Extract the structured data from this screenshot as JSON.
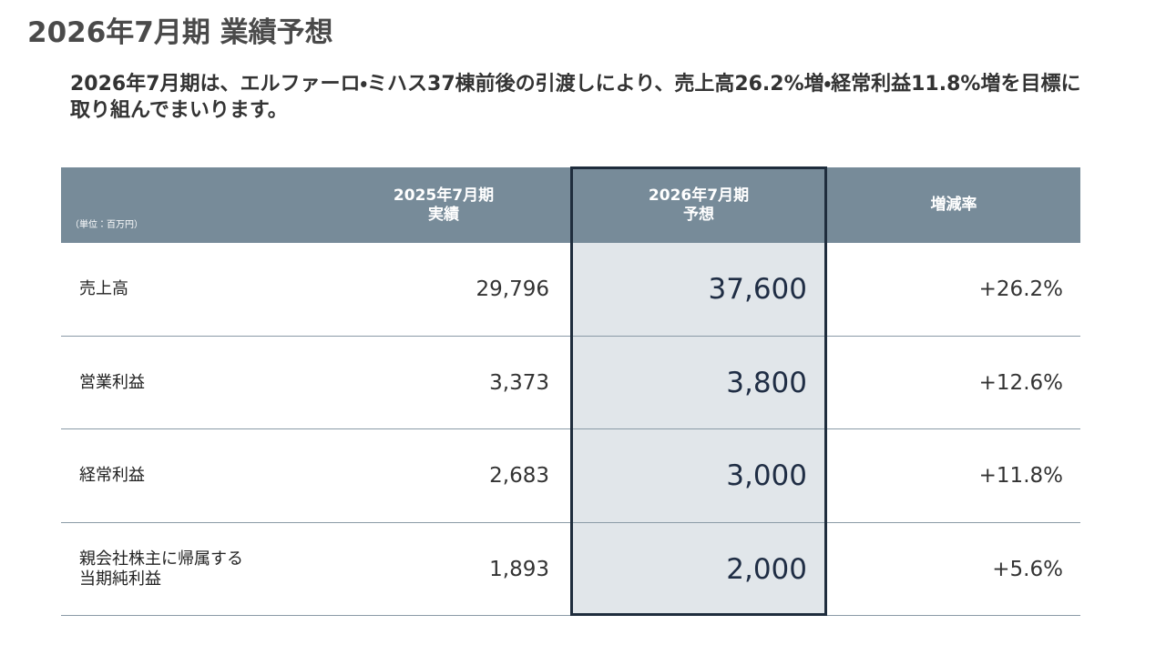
{
  "title": "2026年7月期 業績予想",
  "description": "2026年7月期は、エルファーロ・ミハス37棟前後の引渡しにより、売上高26.2%増・経常利益11.8%増を目標に取り組んでまいります。",
  "table": {
    "unit_note": "（単位：百万円）",
    "headers": [
      [
        "2025年7月期",
        "実績"
      ],
      [
        "2026年7月期",
        "予想"
      ],
      [
        "増減率"
      ]
    ],
    "rows": [
      {
        "label": [
          "売上高"
        ],
        "actual": "29,796",
        "forecast": "37,600",
        "change": "+26.2%"
      },
      {
        "label": [
          "営業利益"
        ],
        "actual": "3,373",
        "forecast": "3,800",
        "change": "+12.6%"
      },
      {
        "label": [
          "経常利益"
        ],
        "actual": "2,683",
        "forecast": "3,000",
        "change": "+11.8%"
      },
      {
        "label": [
          "親会社株主に帰属する",
          "当期純利益"
        ],
        "actual": "1,893",
        "forecast": "2,000",
        "change": "+5.6%"
      }
    ]
  }
}
